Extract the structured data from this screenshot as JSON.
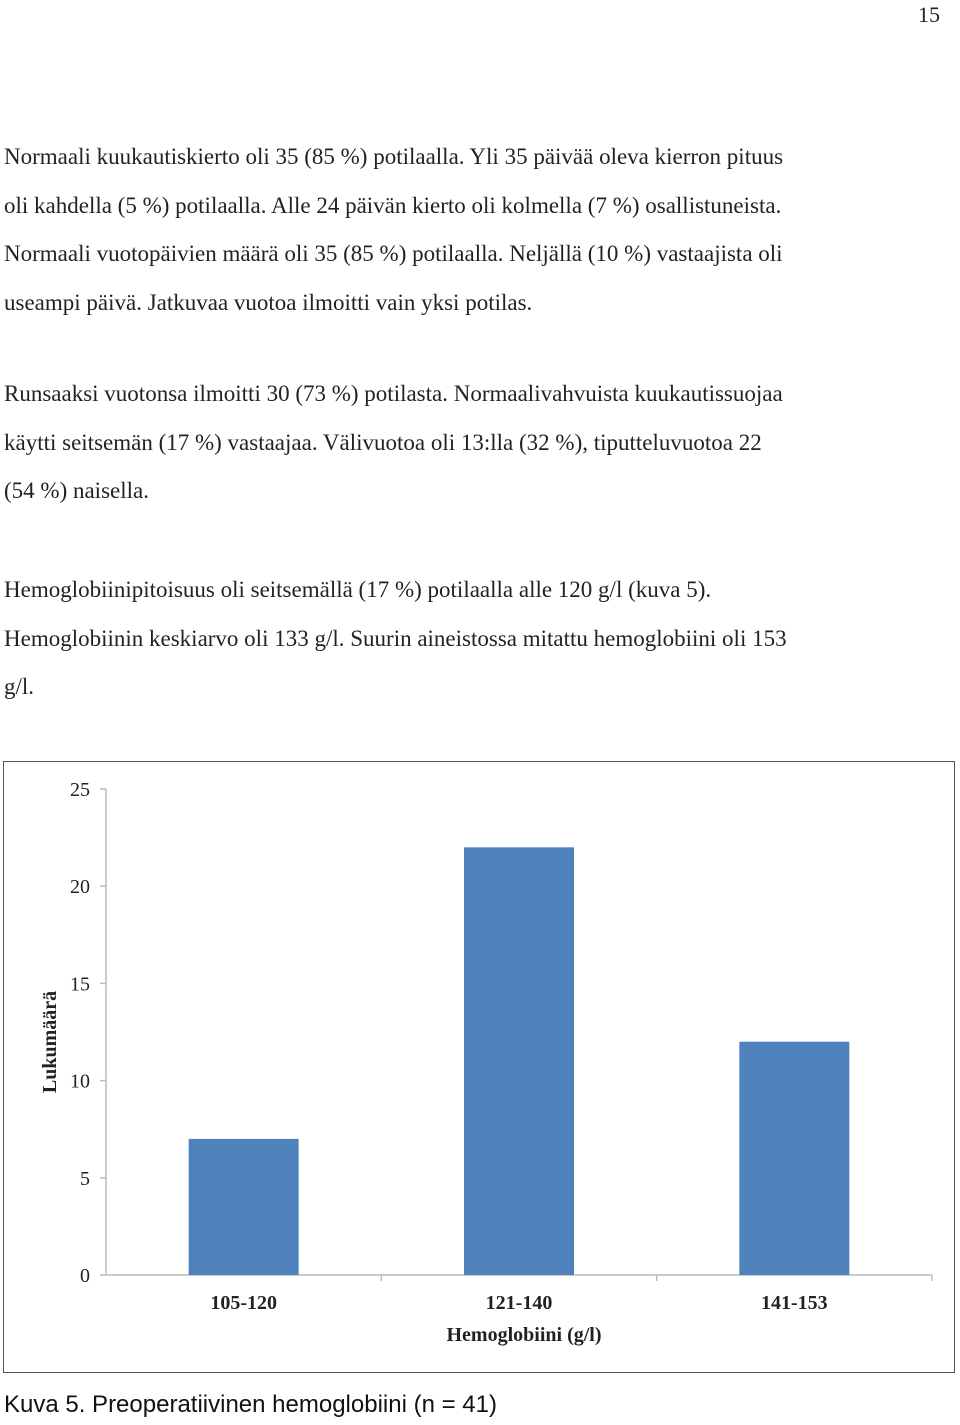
{
  "page_number": "15",
  "paragraphs": [
    {
      "lines": [
        "Normaali kuukautiskierto oli 35 (85 %) potilaalla. Yli 35 päivää oleva kierron pituus",
        "oli kahdella (5 %) potilaalla. Alle 24 päivän kierto oli kolmella (7 %) osallistuneista.",
        "Normaali vuotopäivien määrä oli 35 (85 %) potilaalla. Neljällä (10 %) vastaajista oli",
        "useampi päivä. Jatkuvaa vuotoa ilmoitti vain yksi potilas."
      ]
    },
    {
      "lines": [
        "Runsaaksi vuotonsa ilmoitti 30 (73 %) potilasta. Normaalivahvuista kuukautissuojaa",
        "käytti seitsemän (17 %) vastaajaa. Välivuotoa oli 13:lla (32 %), tiputteluvuotoa 22",
        "(54 %) naisella."
      ]
    },
    {
      "lines": [
        "Hemoglobiinipitoisuus oli seitsemällä (17 %) potilaalla alle 120 g/l (kuva 5).",
        "Hemoglobiinin keskiarvo oli 133 g/l. Suurin aineistossa mitattu hemoglobiini oli 153",
        "g/l."
      ]
    }
  ],
  "chart_data": {
    "type": "bar",
    "categories": [
      "105-120",
      "121-140",
      "141-153"
    ],
    "values": [
      7,
      22,
      12
    ],
    "xlabel": "Hemoglobiini (g/l)",
    "ylabel": "Lukumäärä",
    "ylim": [
      0,
      25
    ],
    "yticks": [
      0,
      5,
      10,
      15,
      20,
      25
    ],
    "grid": false,
    "legend": "none",
    "bar_color": "#4F81BD",
    "axis_color": "#BBBBBB"
  },
  "caption": "Kuva 5. Preoperatiivinen hemoglobiini (n = 41)"
}
